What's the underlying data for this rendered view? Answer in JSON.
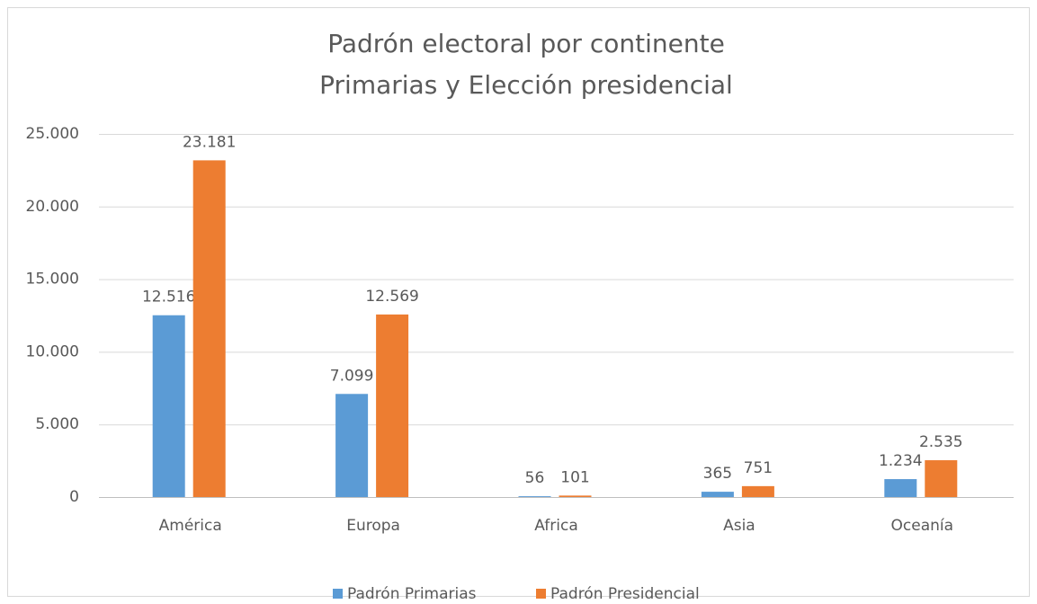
{
  "chart_data": {
    "type": "bar",
    "title": "Padrón electoral por continente",
    "subtitle": "Primarias y Elección presidencial",
    "categories": [
      "América",
      "Europa",
      "Africa",
      "Asia",
      "Oceanía"
    ],
    "series": [
      {
        "name": "Padrón Primarias",
        "color": "#5b9bd5",
        "values": [
          12516,
          7099,
          56,
          365,
          1234
        ],
        "value_labels": [
          "12.516",
          "7.099",
          "56",
          "365",
          "1.234"
        ]
      },
      {
        "name": "Padrón Presidencial",
        "color": "#ed7d31",
        "values": [
          23181,
          12569,
          101,
          751,
          2535
        ],
        "value_labels": [
          "23.181",
          "12.569",
          "101",
          "751",
          "2.535"
        ]
      }
    ],
    "ylim": [
      0,
      25000
    ],
    "yticks": [
      0,
      {
        "value": 5000,
        "label": "5.000"
      },
      {
        "value": 10000,
        "label": "10.000"
      },
      {
        "value": 15000,
        "label": "15.000"
      },
      {
        "value": 20000,
        "label": "20.000"
      },
      {
        "value": 25000,
        "label": "25.000"
      }
    ],
    "grid": true,
    "legend": "bottom"
  }
}
